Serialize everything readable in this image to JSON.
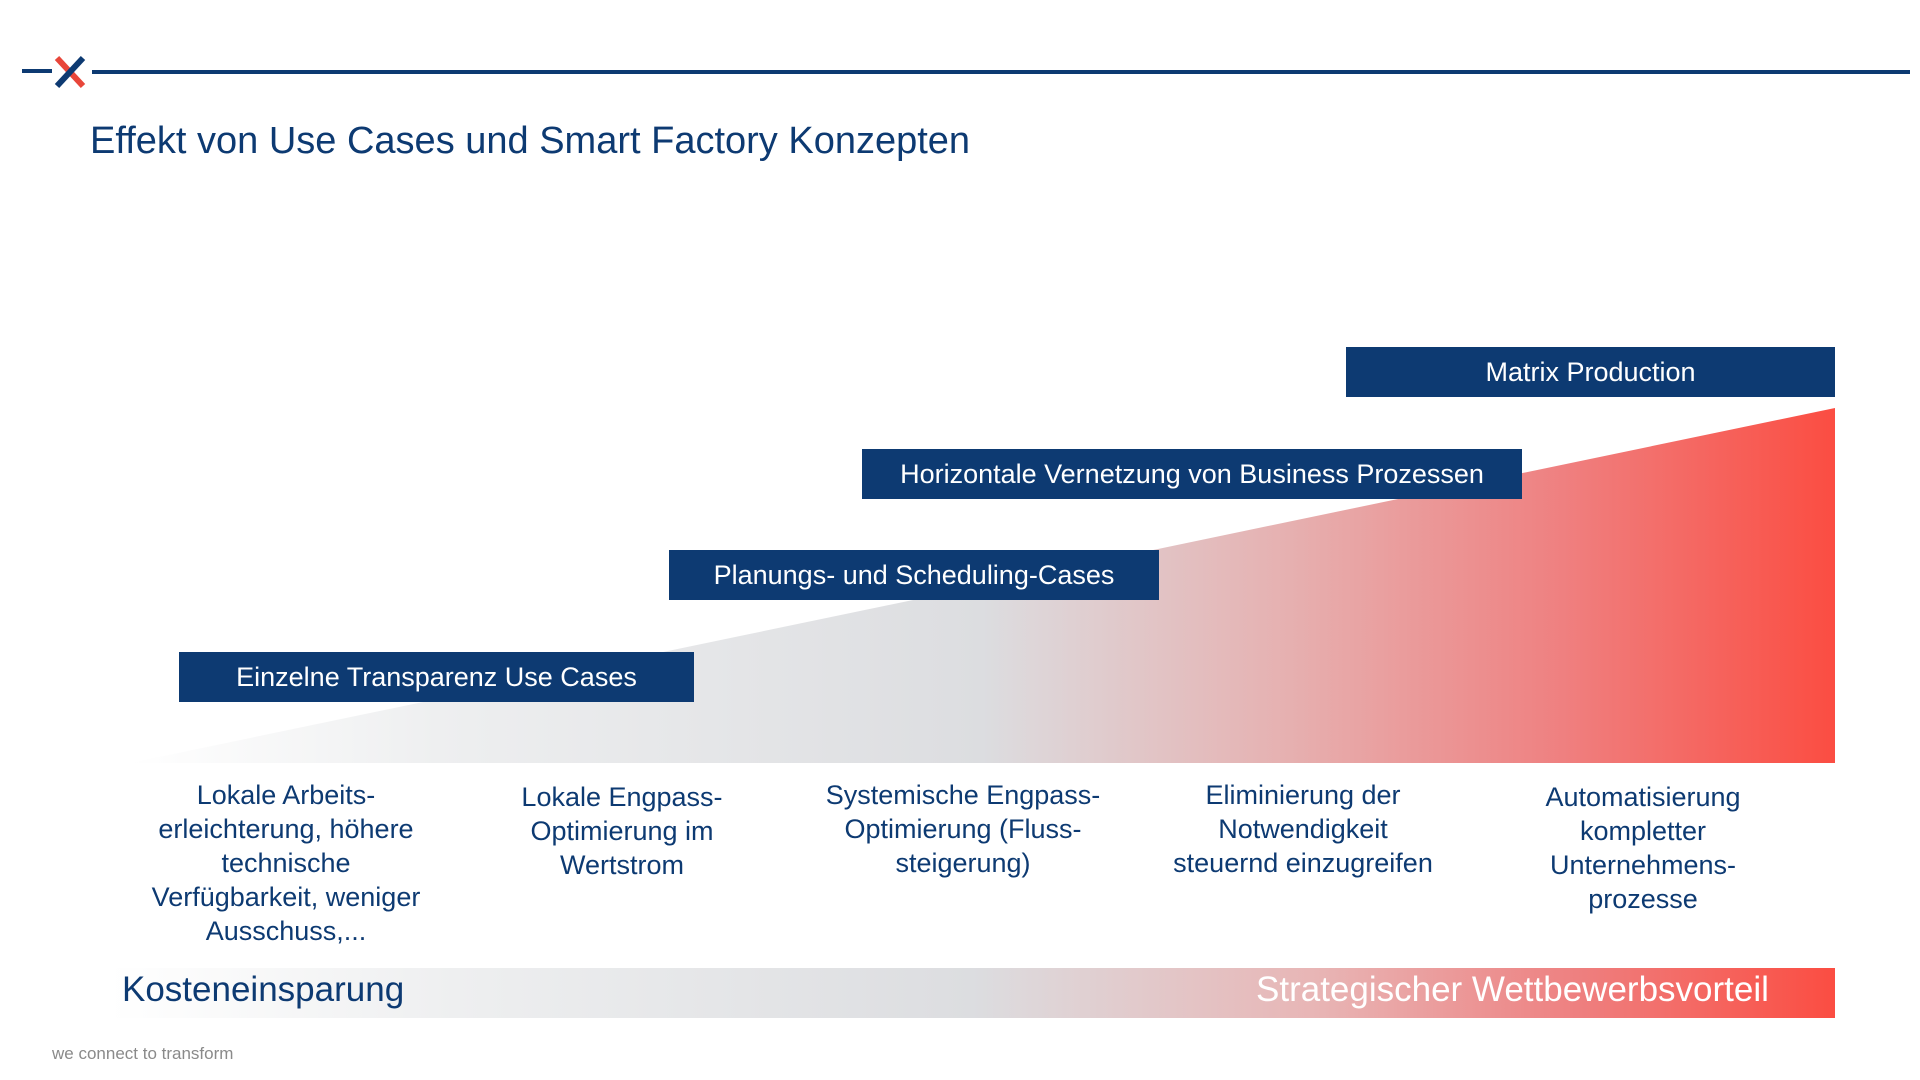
{
  "header": {
    "title": "Effekt von Use Cases und Smart Factory Konzepten"
  },
  "stages": [
    "Einzelne Transparenz Use Cases",
    "Planungs- und Scheduling-Cases",
    "Horizontale Vernetzung von Business Prozessen",
    "Matrix Production"
  ],
  "effects": [
    "Lokale Arbeits-erleichterung, höhere technische Verfügbarkeit, weniger Ausschuss,...",
    "Lokale Engpass-Optimierung im Wertstrom",
    "Systemische Engpass-Optimierung (Fluss-steigerung)",
    "Eliminierung der Notwendigkeit steuernd einzugreifen",
    "Automatisierung kompletter Unternehmens-prozesse"
  ],
  "bottom": {
    "left": "Kosteneinsparung",
    "right": "Strategischer Wettbewerbsvorteil"
  },
  "footer": {
    "tagline": "we connect to transform"
  },
  "colors": {
    "brand_navy": "#0d3a72",
    "accent_red": "#fb4d42",
    "neutral_grey": "#dcdde0"
  },
  "icons": {
    "logo": "x-logo-icon"
  }
}
